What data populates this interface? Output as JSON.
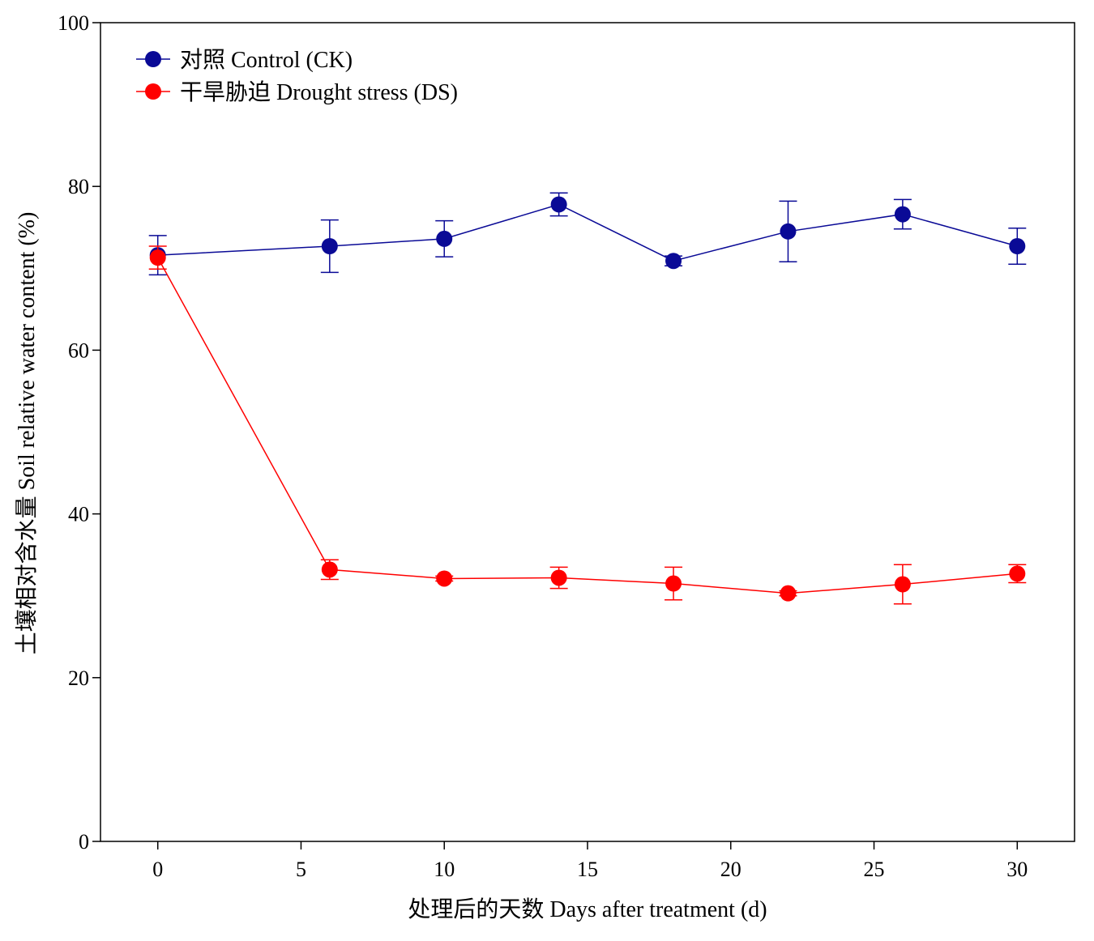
{
  "chart_data": {
    "type": "line",
    "xlabel": "处理后的天数 Days after treatment (d)",
    "ylabel": "土壤相对含水量 Soil relative water content (%)",
    "xlim": [
      -2,
      32
    ],
    "ylim": [
      0,
      100
    ],
    "xticks": [
      0,
      5,
      10,
      15,
      20,
      25,
      30
    ],
    "yticks": [
      0,
      20,
      40,
      60,
      80,
      100
    ],
    "xtick_labels": [
      "0",
      "5",
      "10",
      "15",
      "20",
      "25",
      "30"
    ],
    "ytick_labels": [
      "0",
      "20",
      "40",
      "60",
      "80",
      "100"
    ],
    "grid": false,
    "legend_position": "top-left",
    "series": [
      {
        "name": "对照 Control (CK)",
        "color": "#0a0a96",
        "x": [
          0,
          6,
          10,
          14,
          18,
          22,
          26,
          30
        ],
        "y": [
          71.6,
          72.7,
          73.6,
          77.8,
          70.9,
          74.5,
          76.6,
          72.7
        ],
        "error": [
          2.4,
          3.2,
          2.2,
          1.4,
          0.6,
          3.7,
          1.8,
          2.2
        ]
      },
      {
        "name": "干旱胁迫 Drought stress (DS)",
        "color": "#ff0000",
        "x": [
          0,
          6,
          10,
          14,
          18,
          22,
          26,
          30
        ],
        "y": [
          71.3,
          33.2,
          32.1,
          32.2,
          31.5,
          30.3,
          31.4,
          32.7
        ],
        "error": [
          1.4,
          1.2,
          0.3,
          1.3,
          2.0,
          0.3,
          2.4,
          1.1
        ]
      }
    ]
  }
}
